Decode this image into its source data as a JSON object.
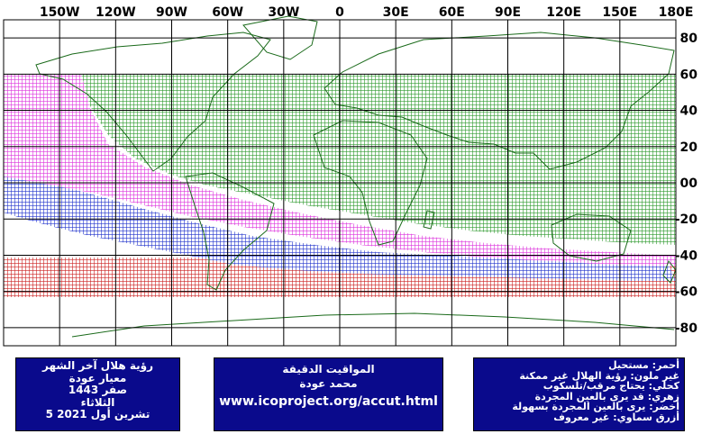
{
  "axes": {
    "longitude_labels": [
      "150W",
      "120W",
      "90W",
      "60W",
      "30W",
      "0",
      "30E",
      "60E",
      "90E",
      "120E",
      "150E",
      "180E"
    ],
    "longitude_values": [
      -150,
      -120,
      -90,
      -60,
      -30,
      0,
      30,
      60,
      90,
      120,
      150,
      180
    ],
    "latitude_labels": [
      "80",
      "60",
      "40",
      "20",
      "00",
      "-20",
      "-40",
      "-60",
      "-80"
    ],
    "latitude_values": [
      80,
      60,
      40,
      20,
      0,
      -20,
      -40,
      -60,
      -80
    ],
    "lon_range": [
      -180,
      180
    ],
    "lat_range": [
      -90,
      90
    ]
  },
  "colors": {
    "green": "#2e9a2e",
    "magenta": "#dd33dd",
    "blue": "#2233cc",
    "red": "#cc2222",
    "land": "#1a6a1a",
    "box": "#0a0a8c"
  },
  "visibility_zones": [
    {
      "category": "green",
      "lat_top": 62,
      "lat_bottom": -15
    },
    {
      "category": "magenta",
      "lat_top": 62,
      "lat_bottom": -27
    },
    {
      "category": "blue",
      "lat_top": 12,
      "lat_bottom": -37
    },
    {
      "category": "red",
      "lat_top": -37,
      "lat_bottom": -60
    }
  ],
  "info_left": {
    "line1": "رؤية هلال آخر الشهر",
    "line2": "معيار عودة",
    "line3": "صفر 1443",
    "line4": "الثلاثاء",
    "line5": "5 تشرين أول 2021"
  },
  "info_mid": {
    "title": "المواقيت الدقيقة",
    "name": "محمد عودة",
    "url": "www.icoproject.org/accut.html"
  },
  "legend": {
    "red": "أحمر: مستحيل",
    "uncolored": "غير ملون: رؤية الهلال غير ممكنة",
    "navy": "كحلي: يحتاج مرقب/تلسكوب",
    "pink": "زهري: قد يرى بالعين المجردة",
    "green": "أخضر: يرى بالعين المجردة بسهولة",
    "sky": "أزرق سماوي: غير معروف"
  }
}
